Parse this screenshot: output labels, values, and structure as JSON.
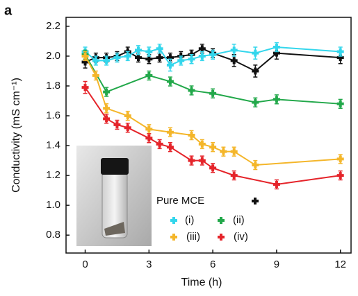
{
  "chart_data": {
    "type": "line",
    "panel_label": "a",
    "x_label": "Time (h)",
    "y_label": "Conductivity (mS cm⁻¹)",
    "xlim": [
      -0.9,
      12.5
    ],
    "xticks": [
      0,
      3,
      6,
      9,
      12
    ],
    "ylim": [
      0.68,
      2.26
    ],
    "yticks": [
      0.8,
      {
        "value": 1,
        "label": "1.0"
      },
      1.2,
      1.4,
      1.6,
      1.8,
      {
        "value": 2,
        "label": "2.0"
      },
      2.2
    ],
    "legend": "lower right",
    "series": [
      {
        "name": "Pure MCE",
        "color": "#111111",
        "x": [
          0,
          0.5,
          1,
          1.5,
          2,
          2.5,
          3,
          3.5,
          4,
          4.5,
          5,
          5.5,
          6,
          7,
          8,
          9,
          12
        ],
        "values": [
          1.96,
          1.99,
          1.99,
          2.0,
          2.03,
          1.99,
          1.98,
          1.99,
          1.99,
          2.0,
          2.01,
          2.05,
          2.02,
          1.97,
          1.9,
          2.02,
          1.99
        ],
        "errors": [
          0.04,
          0.03,
          0.03,
          0.03,
          0.03,
          0.03,
          0.03,
          0.03,
          0.03,
          0.03,
          0.03,
          0.03,
          0.03,
          0.04,
          0.04,
          0.04,
          0.04
        ]
      },
      {
        "name": "(i)",
        "color": "#33d6ec",
        "x": [
          0,
          0.5,
          1,
          1.5,
          2,
          2.5,
          3,
          3.5,
          4,
          4.5,
          5,
          5.5,
          6,
          7,
          8,
          9,
          12
        ],
        "values": [
          2.03,
          1.97,
          1.97,
          1.99,
          2.0,
          2.04,
          2.03,
          2.05,
          1.94,
          1.97,
          1.98,
          2.0,
          2.01,
          2.04,
          2.02,
          2.06,
          2.03
        ],
        "errors": [
          0.03,
          0.03,
          0.03,
          0.03,
          0.03,
          0.03,
          0.03,
          0.03,
          0.04,
          0.03,
          0.03,
          0.03,
          0.03,
          0.04,
          0.04,
          0.03,
          0.03
        ]
      },
      {
        "name": "(ii)",
        "color": "#22a84a",
        "x": [
          0,
          1,
          3,
          4,
          5,
          6,
          8,
          9,
          12
        ],
        "values": [
          2.01,
          1.76,
          1.87,
          1.83,
          1.77,
          1.75,
          1.69,
          1.71,
          1.68
        ],
        "errors": [
          0.03,
          0.03,
          0.03,
          0.03,
          0.03,
          0.03,
          0.03,
          0.03,
          0.03
        ]
      },
      {
        "name": "(iii)",
        "color": "#f4b62a",
        "x": [
          0,
          0.5,
          1,
          2,
          3,
          4,
          5,
          5.5,
          6,
          6.5,
          7,
          8,
          12
        ],
        "values": [
          2.0,
          1.87,
          1.65,
          1.6,
          1.51,
          1.49,
          1.47,
          1.41,
          1.39,
          1.36,
          1.36,
          1.27,
          1.31
        ],
        "errors": [
          0.03,
          0.03,
          0.03,
          0.03,
          0.03,
          0.03,
          0.03,
          0.03,
          0.03,
          0.03,
          0.03,
          0.03,
          0.03
        ]
      },
      {
        "name": "(iv)",
        "color": "#e5242a",
        "x": [
          0,
          1,
          1.5,
          2,
          3,
          3.5,
          4,
          5,
          5.5,
          6,
          7,
          9,
          12
        ],
        "values": [
          1.79,
          1.58,
          1.54,
          1.52,
          1.45,
          1.41,
          1.39,
          1.3,
          1.3,
          1.25,
          1.2,
          1.14,
          1.2
        ],
        "errors": [
          0.04,
          0.03,
          0.03,
          0.03,
          0.03,
          0.03,
          0.03,
          0.03,
          0.03,
          0.03,
          0.03,
          0.03,
          0.03
        ]
      }
    ]
  }
}
